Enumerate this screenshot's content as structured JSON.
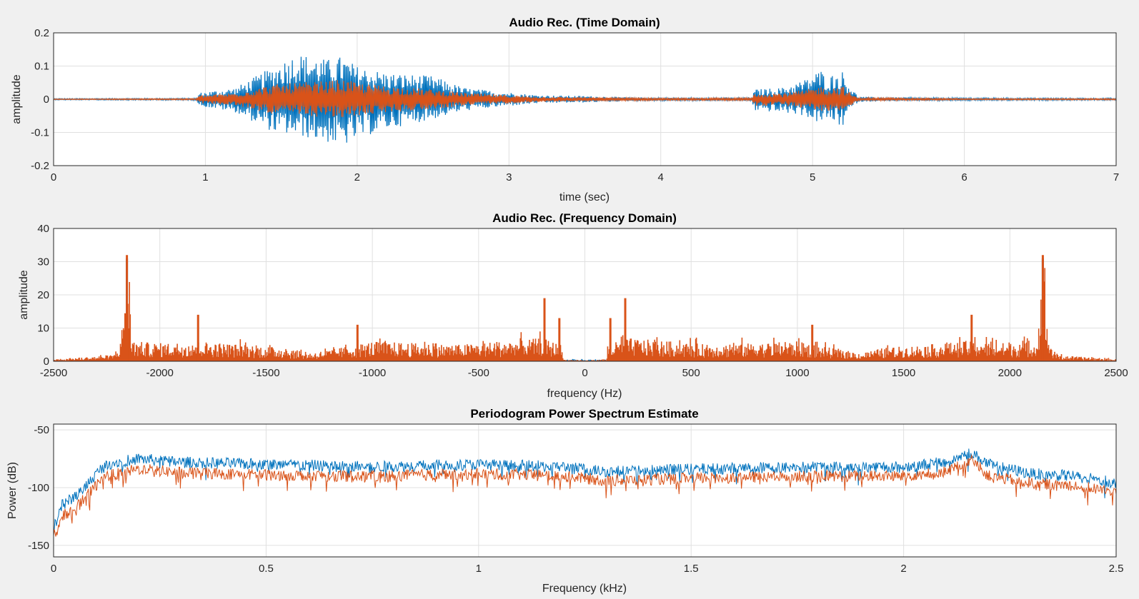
{
  "chart_data": [
    {
      "type": "line",
      "title": "Audio Rec. (Time Domain)",
      "xlabel": "time (sec)",
      "ylabel": "amplitude",
      "xlim": [
        0,
        7
      ],
      "ylim": [
        -0.2,
        0.2
      ],
      "xticks": [
        0,
        1,
        2,
        3,
        4,
        5,
        6,
        7
      ],
      "xtick_labels": [
        "0",
        "1",
        "2",
        "3",
        "4",
        "5",
        "6",
        "7"
      ],
      "yticks": [
        0.2,
        0.1,
        0,
        -0.1,
        -0.2
      ],
      "ytick_labels": [
        "0.2",
        "0.1",
        "0",
        "-0.1",
        "-0.2"
      ],
      "grid": true,
      "series": [
        {
          "color": "#0072bd",
          "envelope": {
            "x": [
              0,
              0.94,
              0.96,
              1.2,
              1.45,
              1.6,
              1.8,
              1.9,
              2.0,
              2.2,
              2.5,
              2.7,
              2.9,
              3.2,
              3.5,
              3.8,
              4.2,
              4.6,
              4.62,
              4.8,
              4.95,
              5.05,
              5.1,
              5.2,
              5.22,
              5.3,
              5.5,
              6.0,
              7.0
            ],
            "upper": [
              0.002,
              0.003,
              0.02,
              0.035,
              0.1,
              0.14,
              0.12,
              0.13,
              0.1,
              0.08,
              0.07,
              0.035,
              0.025,
              0.012,
              0.01,
              0.006,
              0.005,
              0.006,
              0.03,
              0.035,
              0.06,
              0.09,
              0.07,
              0.085,
              0.06,
              0.008,
              0.006,
              0.004,
              0.003
            ],
            "lower": [
              -0.002,
              -0.003,
              -0.02,
              -0.04,
              -0.1,
              -0.11,
              -0.13,
              -0.145,
              -0.12,
              -0.09,
              -0.06,
              -0.035,
              -0.025,
              -0.012,
              -0.01,
              -0.006,
              -0.005,
              -0.006,
              -0.035,
              -0.04,
              -0.05,
              -0.075,
              -0.06,
              -0.085,
              -0.05,
              -0.008,
              -0.006,
              -0.004,
              -0.003
            ]
          }
        },
        {
          "color": "#d95319",
          "envelope": {
            "x": [
              0,
              0.94,
              0.96,
              1.2,
              1.45,
              1.6,
              1.8,
              1.9,
              2.0,
              2.2,
              2.5,
              2.7,
              2.9,
              3.2,
              3.5,
              3.8,
              4.2,
              4.6,
              4.62,
              4.8,
              4.95,
              5.05,
              5.1,
              5.2,
              5.22,
              5.3,
              5.5,
              6.0,
              7.0
            ],
            "upper": [
              0.001,
              0.002,
              0.012,
              0.02,
              0.045,
              0.05,
              0.055,
              0.06,
              0.05,
              0.04,
              0.03,
              0.02,
              0.015,
              0.008,
              0.006,
              0.004,
              0.003,
              0.004,
              0.02,
              0.02,
              0.028,
              0.04,
              0.035,
              0.04,
              0.03,
              0.004,
              0.004,
              0.002,
              0.002
            ],
            "lower": [
              -0.001,
              -0.002,
              -0.012,
              -0.02,
              -0.045,
              -0.05,
              -0.055,
              -0.06,
              -0.05,
              -0.04,
              -0.03,
              -0.02,
              -0.015,
              -0.008,
              -0.006,
              -0.004,
              -0.003,
              -0.004,
              -0.02,
              -0.02,
              -0.028,
              -0.04,
              -0.035,
              -0.04,
              -0.03,
              -0.004,
              -0.004,
              -0.002,
              -0.002
            ]
          }
        }
      ]
    },
    {
      "type": "line",
      "title": "Audio Rec. (Frequency Domain)",
      "xlabel": "frequency (Hz)",
      "ylabel": "amplitude",
      "xlim": [
        -2500,
        2500
      ],
      "ylim": [
        0,
        40
      ],
      "xticks": [
        -2500,
        -2000,
        -1500,
        -1000,
        -500,
        0,
        500,
        1000,
        1500,
        2000,
        2500
      ],
      "xtick_labels": [
        "-2500",
        "-2000",
        "-1500",
        "-1000",
        "-500",
        "0",
        "500",
        "1000",
        "1500",
        "2000",
        "2500"
      ],
      "yticks": [
        40,
        30,
        20,
        10,
        0
      ],
      "ytick_labels": [
        "40",
        "30",
        "20",
        "10",
        "0"
      ],
      "grid": true,
      "series": [
        {
          "color": "#0072bd",
          "peaks": [
            [
              -2155,
              31
            ],
            [
              2155,
              31
            ]
          ],
          "envelope": {
            "x": [
              -2500,
              -2200,
              -2160,
              -2155,
              -2150,
              -2100,
              2100,
              2150,
              2155,
              2160,
              2200,
              2500
            ],
            "upper": [
              0.3,
              0.5,
              3,
              31,
              3,
              0.5,
              0.5,
              3,
              31,
              3,
              0.5,
              0.3
            ]
          }
        },
        {
          "color": "#d95319",
          "peaks": [
            [
              -2155,
              32
            ],
            [
              -1820,
              14
            ],
            [
              -1070,
              11
            ],
            [
              -190,
              19
            ],
            [
              -120,
              13
            ],
            [
              120,
              13
            ],
            [
              190,
              19
            ],
            [
              1070,
              11
            ],
            [
              1820,
              14
            ],
            [
              2155,
              32
            ]
          ],
          "envelope": {
            "x": [
              -2500,
              -2300,
              -2220,
              -2180,
              -2155,
              -2130,
              -2000,
              -1800,
              -1600,
              -1400,
              -1300,
              -1200,
              -1000,
              -800,
              -600,
              -400,
              -200,
              -110,
              -100,
              0,
              100,
              110,
              200,
              400,
              600,
              800,
              1000,
              1200,
              1300,
              1400,
              1600,
              1800,
              2000,
              2130,
              2155,
              2180,
              2220,
              2300,
              2500
            ],
            "upper": [
              0.6,
              1.5,
              2,
              6,
              32,
              6,
              5.5,
              6,
              5,
              4,
              2.5,
              3.5,
              6,
              5.5,
              5,
              6,
              7,
              5,
              0.5,
              0.3,
              0.5,
              5,
              7,
              6,
              5,
              5.5,
              6,
              3.5,
              2.5,
              4,
              5,
              6,
              5.5,
              6,
              32,
              6,
              2,
              1.5,
              0.6
            ]
          }
        }
      ]
    },
    {
      "type": "line",
      "title": "Periodogram Power Spectrum Estimate",
      "xlabel": "Frequency (kHz)",
      "ylabel": "Power (dB)",
      "xlim": [
        0,
        2.5
      ],
      "ylim": [
        -160,
        -45
      ],
      "xticks": [
        0,
        0.5,
        1,
        1.5,
        2,
        2.5
      ],
      "xtick_labels": [
        "0",
        "0.5",
        "1",
        "1.5",
        "2",
        "2.5"
      ],
      "yticks": [
        -50,
        -100,
        -150
      ],
      "ytick_labels": [
        "-50",
        "-100",
        "-150"
      ],
      "grid": true,
      "series": [
        {
          "color": "#0072bd",
          "envelope": {
            "x": [
              0,
              0.02,
              0.06,
              0.12,
              0.2,
              0.3,
              0.5,
              0.75,
              1.0,
              1.2,
              1.3,
              1.5,
              1.8,
              2.0,
              2.1,
              2.14,
              2.16,
              2.2,
              2.3,
              2.4,
              2.5
            ],
            "center": [
              -135,
              -115,
              -105,
              -80,
              -75,
              -78,
              -80,
              -82,
              -80,
              -82,
              -86,
              -84,
              -82,
              -82,
              -78,
              -72,
              -70,
              -80,
              -88,
              -90,
              -96
            ]
          }
        },
        {
          "color": "#d95319",
          "envelope": {
            "x": [
              0,
              0.02,
              0.06,
              0.12,
              0.2,
              0.3,
              0.5,
              0.75,
              1.0,
              1.2,
              1.3,
              1.5,
              1.8,
              2.0,
              2.1,
              2.14,
              2.16,
              2.2,
              2.3,
              2.4,
              2.5
            ],
            "center": [
              -142,
              -125,
              -115,
              -90,
              -84,
              -87,
              -89,
              -90,
              -88,
              -90,
              -94,
              -92,
              -90,
              -90,
              -86,
              -80,
              -76,
              -90,
              -96,
              -98,
              -104
            ]
          }
        }
      ]
    }
  ]
}
